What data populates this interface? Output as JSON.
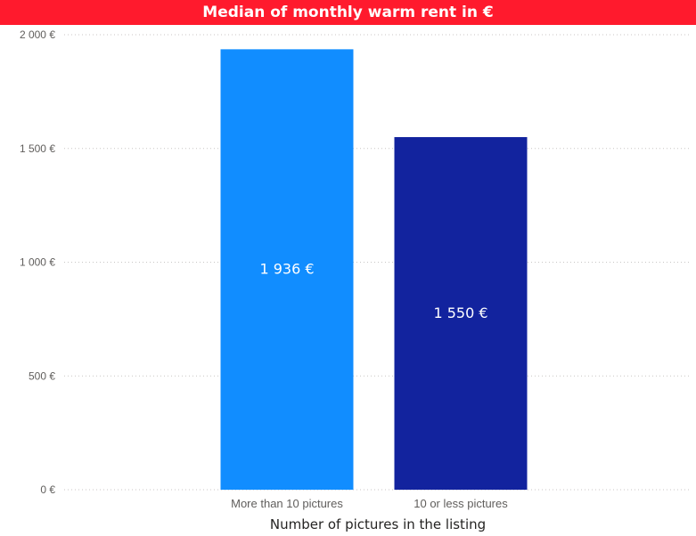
{
  "chart_data": {
    "type": "bar",
    "title": "Median of monthly warm rent in €",
    "xlabel": "Number of pictures in the listing",
    "ylabel": "",
    "categories": [
      "More than 10 pictures",
      "10 or less pictures"
    ],
    "values": [
      1936,
      1550
    ],
    "data_labels": [
      "1 936 €",
      "1 550 €"
    ],
    "bar_colors": [
      "#118dff",
      "#12239e"
    ],
    "ylim": [
      0,
      2000
    ],
    "yticks": [
      0,
      500,
      1000,
      1500,
      2000
    ],
    "ytick_labels": [
      "0 €",
      "500 €",
      "1 000 €",
      "1 500 €",
      "2 000 €"
    ],
    "grid": true,
    "title_background": "#ff1a2d"
  }
}
